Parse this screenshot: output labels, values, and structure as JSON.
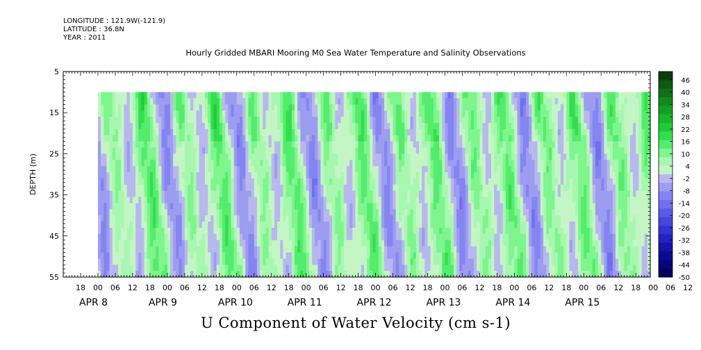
{
  "header": {
    "longitude": "LONGITUDE : 121.9W(-121.9)",
    "latitude": "LATITUDE : 36.8N",
    "year": "YEAR : 2011"
  },
  "chart_data": {
    "type": "heatmap",
    "title": "Hourly Gridded MBARI Mooring M0 Sea Water Temperature and Salinity Observations",
    "subtitle": "U Component of Water Velocity (cm s-1)",
    "ylabel": "DEPTH (m)",
    "xlabel": "",
    "ylim": [
      55,
      5
    ],
    "y_ticks": [
      5,
      15,
      25,
      35,
      45,
      55
    ],
    "data_depth_range": [
      10,
      55
    ],
    "x_start": "2011-04-07 12:00",
    "x_end": "2011-04-15 23:00",
    "hour_tick_labels": [
      "18",
      "00",
      "06",
      "12",
      "18",
      "00",
      "06",
      "12",
      "18",
      "00",
      "06",
      "12",
      "18",
      "00",
      "06",
      "12",
      "18",
      "00",
      "06",
      "12",
      "18",
      "00",
      "06",
      "12",
      "18",
      "00",
      "06",
      "12",
      "18",
      "00",
      "06",
      "12",
      "18",
      "00",
      "06",
      "12"
    ],
    "date_labels": [
      {
        "month": "APR",
        "day": "8"
      },
      {
        "month": "APR",
        "day": "9"
      },
      {
        "month": "APR",
        "day": "10"
      },
      {
        "month": "APR",
        "day": "11"
      },
      {
        "month": "APR",
        "day": "12"
      },
      {
        "month": "APR",
        "day": "13"
      },
      {
        "month": "APR",
        "day": "14"
      },
      {
        "month": "APR",
        "day": "15"
      }
    ],
    "colorbar": {
      "labels": [
        "46",
        "40",
        "34",
        "28",
        "22",
        "16",
        "10",
        "4",
        "-2",
        "-8",
        "-14",
        "-20",
        "-26",
        "-32",
        "-38",
        "-44",
        "-50"
      ],
      "range": [
        -50,
        50
      ],
      "colors": [
        "#0b3d0b",
        "#0d5a12",
        "#107018",
        "#118a1c",
        "#14a024",
        "#17b82c",
        "#1dcc38",
        "#33de4e",
        "#55ec6d",
        "#7ef58d",
        "#a8f7b0",
        "#c4f5c4",
        "#b8b8ef",
        "#9c9cf0",
        "#8484f2",
        "#7070ee",
        "#5a5ae8",
        "#4646de",
        "#3434d2",
        "#2222c2",
        "#1414ac",
        "#0b0b94",
        "#06067a",
        "#030360"
      ]
    },
    "cells_description_values": {
      "dominant_range": [
        -14,
        22
      ],
      "note": ""
    },
    "grid": false,
    "legend": "right colorbar"
  }
}
